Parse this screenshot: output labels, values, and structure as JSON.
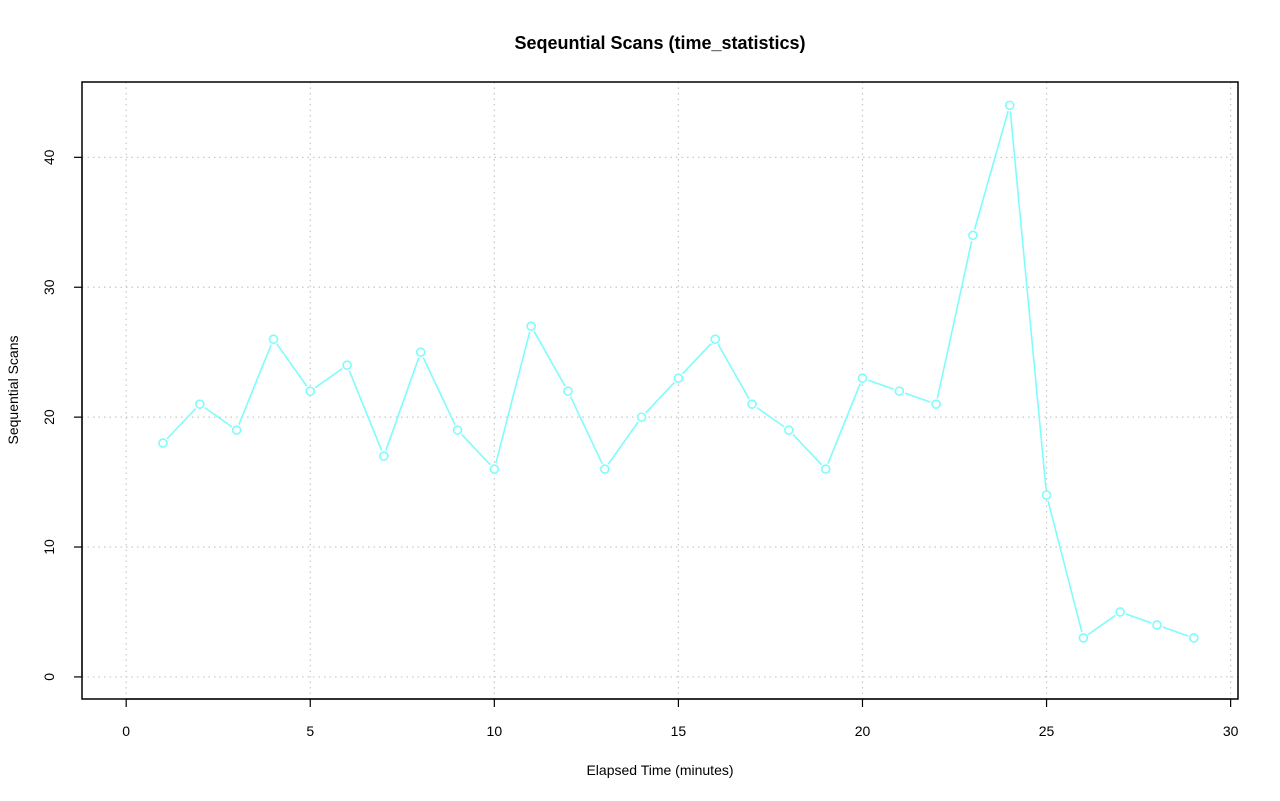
{
  "chart_data": {
    "type": "line",
    "title": "Seqeuntial Scans (time_statistics)",
    "xlabel": "Elapsed Time (minutes)",
    "ylabel": "Sequential Scans",
    "xlim": [
      -1.2,
      30.2
    ],
    "ylim": [
      -1.7,
      45.8
    ],
    "xticks": [
      0,
      5,
      10,
      15,
      20,
      25,
      30
    ],
    "yticks": [
      0,
      10,
      20,
      30,
      40
    ],
    "grid": true,
    "line_color": "#7ffcfc",
    "series": [
      {
        "x": [
          1,
          2,
          3,
          4,
          5,
          6,
          7,
          8,
          9,
          10,
          11,
          12,
          13,
          14,
          15,
          16,
          17,
          18,
          19,
          20,
          21,
          22,
          23,
          24,
          25,
          26,
          27,
          28,
          29
        ],
        "values": [
          18,
          21,
          19,
          26,
          22,
          24,
          17,
          25,
          19,
          16,
          27,
          22,
          16,
          20,
          23,
          26,
          21,
          19,
          16,
          23,
          22,
          21,
          34,
          44,
          14,
          3,
          5,
          4,
          3
        ]
      }
    ]
  }
}
